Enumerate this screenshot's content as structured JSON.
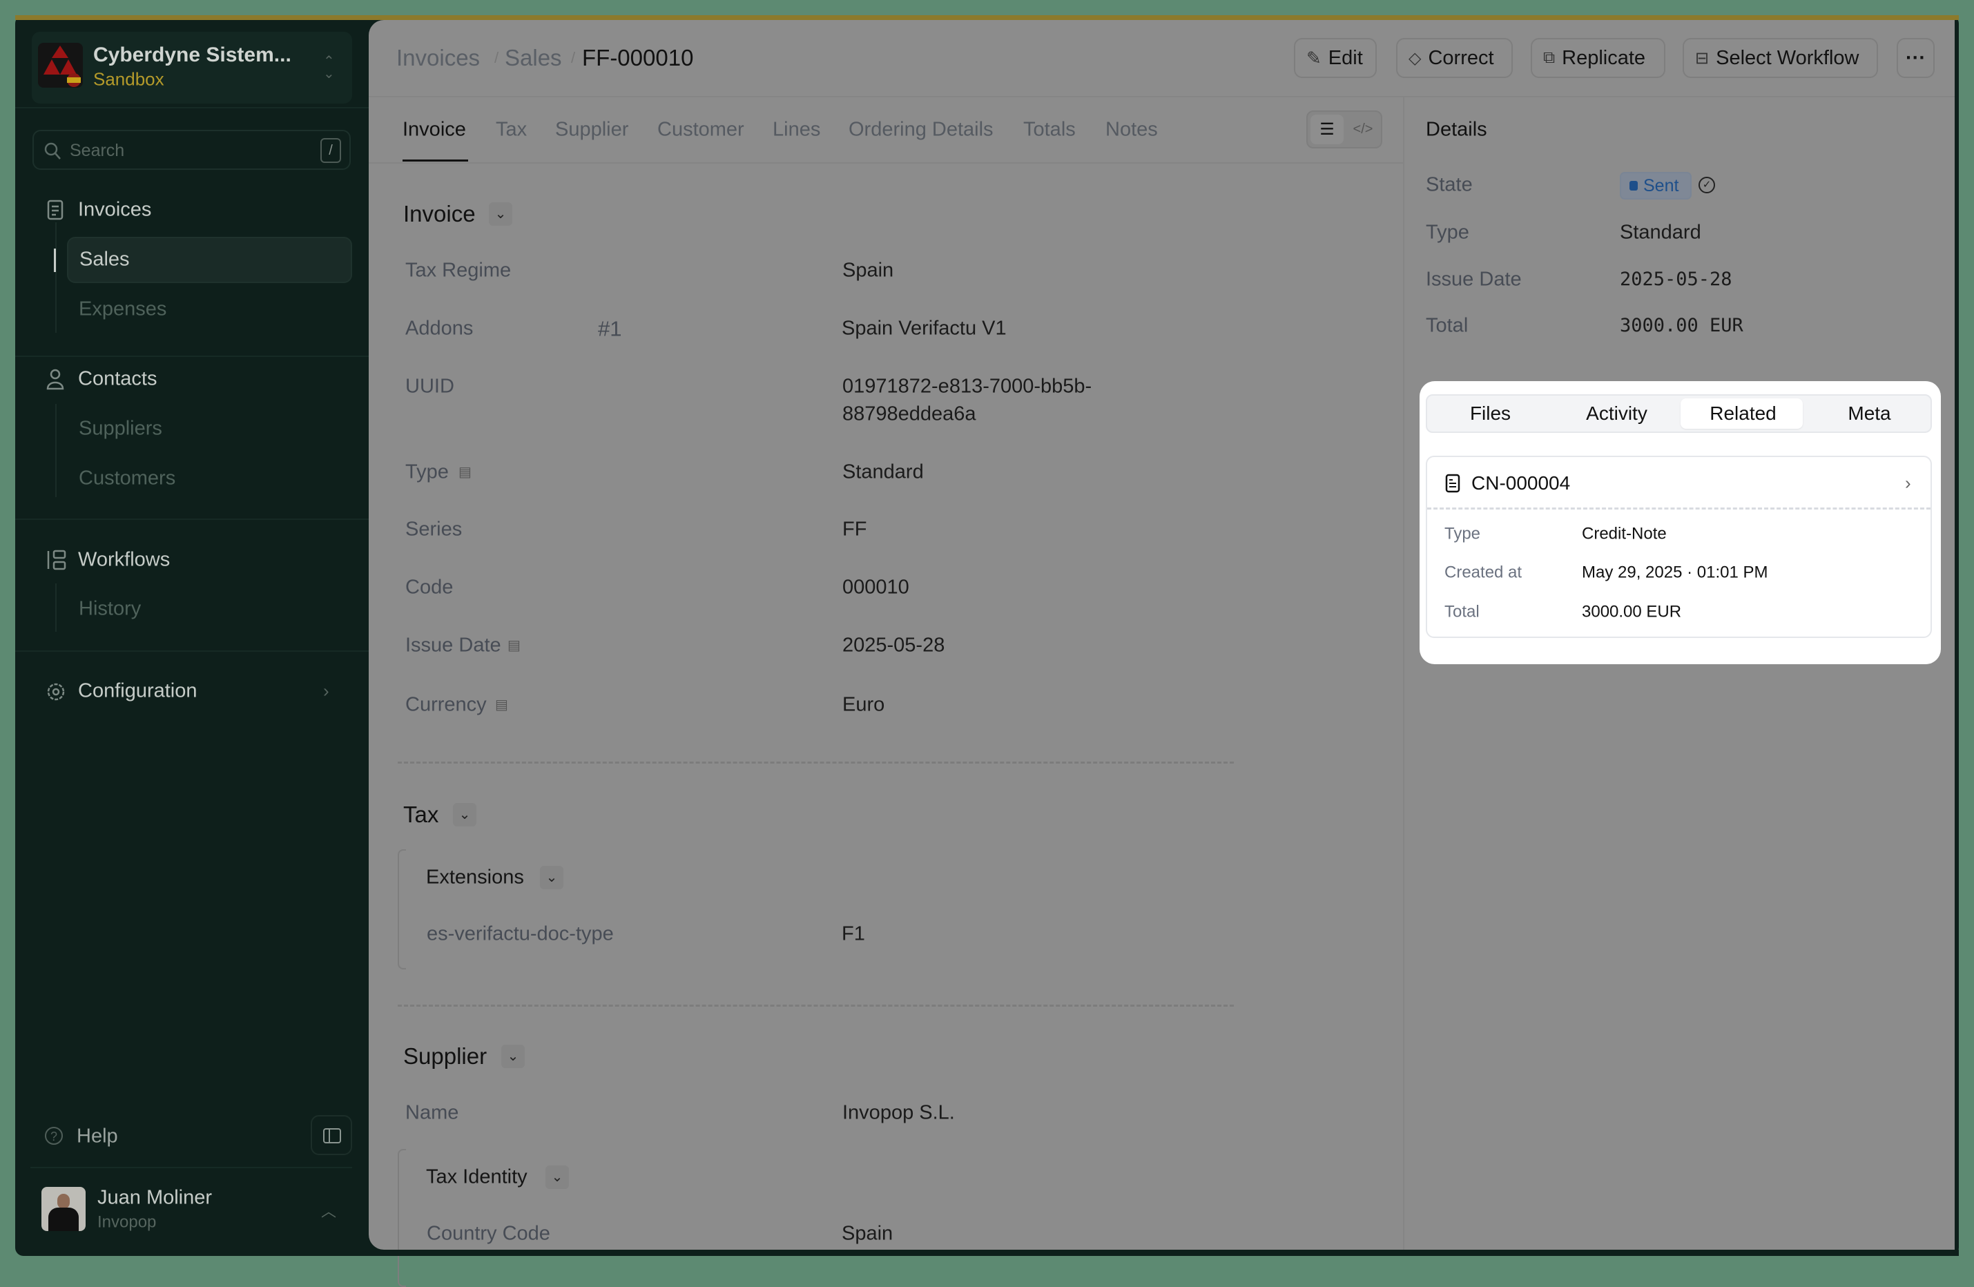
{
  "sidebar": {
    "org_name": "Cyberdyne Sistem...",
    "org_env": "Sandbox",
    "search_placeholder": "Search",
    "search_shortcut": "/",
    "sections": [
      {
        "label": "Invoices",
        "items": [
          "Sales",
          "Expenses"
        ]
      },
      {
        "label": "Contacts",
        "items": [
          "Suppliers",
          "Customers"
        ]
      },
      {
        "label": "Workflows",
        "items": [
          "History"
        ]
      },
      {
        "label": "Configuration"
      }
    ],
    "active_item": "Sales",
    "help": "Help",
    "user": {
      "name": "Juan Moliner",
      "org": "Invopop"
    }
  },
  "header": {
    "breadcrumb": [
      "Invoices",
      "Sales",
      "FF-000010"
    ],
    "actions": {
      "edit": "Edit",
      "correct": "Correct",
      "replicate": "Replicate",
      "workflow": "Select Workflow",
      "more": "···"
    }
  },
  "tabs": [
    "Invoice",
    "Tax",
    "Supplier",
    "Customer",
    "Lines",
    "Ordering Details",
    "Totals",
    "Notes"
  ],
  "active_tab": "Invoice",
  "invoice": {
    "title": "Invoice",
    "fields": [
      {
        "label": "Tax Regime",
        "value": "Spain"
      },
      {
        "label": "Addons",
        "index": "#1",
        "value": "Spain Verifactu V1"
      },
      {
        "label": "UUID",
        "value": "01971872-e813-7000-bb5b-",
        "value2": "88798eddea6a"
      },
      {
        "label": "Type",
        "value": "Standard"
      },
      {
        "label": "Series",
        "value": "FF"
      },
      {
        "label": "Code",
        "value": "000010"
      },
      {
        "label": "Issue Date",
        "value": "2025-05-28"
      },
      {
        "label": "Currency",
        "value": "Euro"
      }
    ]
  },
  "tax": {
    "title": "Tax",
    "extensions_title": "Extensions",
    "ext_label": "es-verifactu-doc-type",
    "ext_value": "F1"
  },
  "supplier": {
    "title": "Supplier",
    "name_label": "Name",
    "name_value": "Invopop S.L.",
    "tax_identity_title": "Tax Identity",
    "country_label": "Country Code",
    "country_value": "Spain"
  },
  "details": {
    "title": "Details",
    "state_label": "State",
    "state": "Sent",
    "state_color": "#1e4f8a",
    "type_label": "Type",
    "type": "Standard",
    "issue_label": "Issue Date",
    "issue": "2025-05-28",
    "total_label": "Total",
    "total": "3000.00 EUR"
  },
  "panel": {
    "tabs": [
      "Files",
      "Activity",
      "Related",
      "Meta"
    ],
    "active_tab": "Related",
    "related": {
      "code": "CN-000004",
      "type_label": "Type",
      "type": "Credit-Note",
      "created_label": "Created at",
      "created": "May 29, 2025 · 01:01 PM",
      "total_label": "Total",
      "total": "3000.00 EUR"
    }
  }
}
